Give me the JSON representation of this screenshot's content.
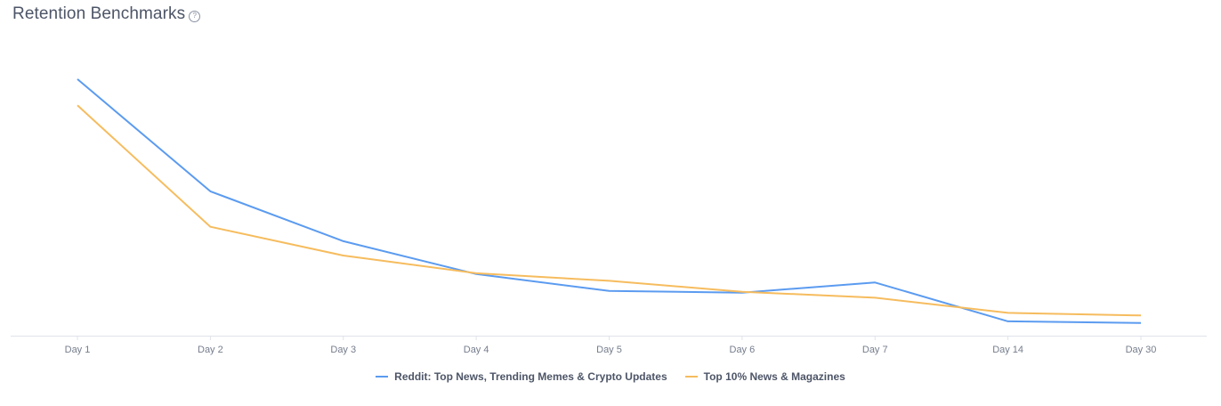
{
  "header": {
    "title": "Retention Benchmarks",
    "help_icon": "help-circle-icon",
    "help_glyph": "?"
  },
  "chart_data": {
    "type": "line",
    "title": "Retention Benchmarks",
    "xlabel": "",
    "ylabel": "",
    "categories": [
      "Day 1",
      "Day 2",
      "Day 3",
      "Day 4",
      "Day 5",
      "Day 6",
      "Day 7",
      "Day 14",
      "Day 30"
    ],
    "ylim": [
      0,
      30
    ],
    "grid": false,
    "legend_position": "bottom-center",
    "series": [
      {
        "name": "Reddit: Top News, Trending Memes & Crypto Updates",
        "color": "#5b9bf0",
        "values": [
          30.4,
          17.1,
          11.2,
          7.3,
          5.3,
          5.1,
          6.3,
          1.7,
          1.5
        ]
      },
      {
        "name": "Top 10% News & Magazines",
        "color": "#f6bc5e",
        "values": [
          27.3,
          12.9,
          9.5,
          7.4,
          6.5,
          5.2,
          4.5,
          2.7,
          2.4
        ]
      }
    ]
  }
}
